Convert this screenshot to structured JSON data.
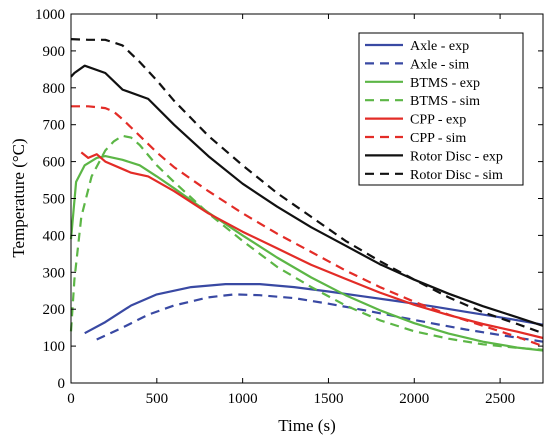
{
  "chart_data": {
    "type": "line",
    "title": "",
    "xlabel": "Time (s)",
    "ylabel": "Temperature (°C)",
    "xlim": [
      0,
      2750
    ],
    "ylim": [
      0,
      1000
    ],
    "xticks": [
      0,
      500,
      1000,
      1500,
      2000,
      2500
    ],
    "yticks": [
      0,
      100,
      200,
      300,
      400,
      500,
      600,
      700,
      800,
      900,
      1000
    ],
    "grid": false,
    "legend_position": "top-right",
    "series": [
      {
        "name": "Axle - exp",
        "color": "#3949a3",
        "dash": "solid",
        "x": [
          80,
          200,
          350,
          500,
          700,
          900,
          1100,
          1300,
          1500,
          1700,
          1900,
          2100,
          2300,
          2500,
          2750
        ],
        "y": [
          135,
          165,
          210,
          240,
          260,
          268,
          268,
          260,
          248,
          235,
          222,
          208,
          193,
          178,
          158
        ]
      },
      {
        "name": "Axle - sim",
        "color": "#3949a3",
        "dash": "dashed",
        "x": [
          150,
          300,
          450,
          600,
          800,
          950,
          1100,
          1300,
          1500,
          1700,
          1900,
          2100,
          2300,
          2500,
          2750
        ],
        "y": [
          118,
          150,
          185,
          210,
          232,
          240,
          238,
          230,
          215,
          198,
          180,
          162,
          145,
          130,
          112
        ]
      },
      {
        "name": "BTMS - exp",
        "color": "#5cb646",
        "dash": "solid",
        "x": [
          0,
          30,
          80,
          150,
          200,
          300,
          400,
          500,
          600,
          800,
          1000,
          1200,
          1400,
          1600,
          1800,
          2000,
          2200,
          2400,
          2600,
          2750
        ],
        "y": [
          390,
          545,
          590,
          610,
          615,
          605,
          590,
          560,
          528,
          462,
          400,
          340,
          286,
          238,
          197,
          162,
          134,
          112,
          96,
          88
        ]
      },
      {
        "name": "BTMS - sim",
        "color": "#5cb646",
        "dash": "dashed",
        "x": [
          0,
          20,
          60,
          120,
          200,
          250,
          300,
          350,
          400,
          500,
          600,
          800,
          1000,
          1200,
          1400,
          1600,
          1800,
          2000,
          2200,
          2400,
          2600,
          2750
        ],
        "y": [
          140,
          280,
          450,
          560,
          630,
          655,
          670,
          665,
          645,
          590,
          545,
          460,
          385,
          315,
          260,
          210,
          170,
          140,
          120,
          105,
          95,
          90
        ]
      },
      {
        "name": "CPP - exp",
        "color": "#e32c27",
        "dash": "solid",
        "x": [
          60,
          100,
          150,
          200,
          350,
          450,
          600,
          800,
          1000,
          1200,
          1400,
          1600,
          1800,
          2000,
          2200,
          2400,
          2600,
          2750
        ],
        "y": [
          625,
          610,
          620,
          600,
          570,
          560,
          520,
          460,
          410,
          365,
          320,
          282,
          245,
          212,
          184,
          160,
          139,
          122
        ]
      },
      {
        "name": "CPP - sim",
        "color": "#e32c27",
        "dash": "dashed",
        "x": [
          0,
          100,
          200,
          250,
          300,
          400,
          500,
          600,
          800,
          1000,
          1200,
          1400,
          1600,
          1800,
          2000,
          2200,
          2400,
          2600,
          2750
        ],
        "y": [
          750,
          750,
          745,
          735,
          715,
          670,
          625,
          585,
          520,
          460,
          405,
          355,
          305,
          260,
          220,
          185,
          155,
          125,
          100
        ]
      },
      {
        "name": "Rotor Disc - exp",
        "color": "#111111",
        "dash": "solid",
        "x": [
          0,
          20,
          80,
          200,
          300,
          450,
          600,
          800,
          1000,
          1200,
          1400,
          1600,
          1800,
          2000,
          2200,
          2400,
          2600,
          2750
        ],
        "y": [
          830,
          840,
          860,
          840,
          795,
          770,
          700,
          615,
          540,
          478,
          422,
          372,
          322,
          280,
          242,
          208,
          178,
          155
        ]
      },
      {
        "name": "Rotor Disc - sim",
        "color": "#111111",
        "dash": "dashed",
        "x": [
          0,
          100,
          200,
          300,
          400,
          500,
          600,
          800,
          1000,
          1200,
          1400,
          1600,
          1800,
          2000,
          2200,
          2400,
          2600,
          2750
        ],
        "y": [
          932,
          930,
          930,
          915,
          870,
          820,
          765,
          670,
          590,
          515,
          450,
          385,
          330,
          280,
          232,
          192,
          160,
          135
        ]
      }
    ]
  }
}
